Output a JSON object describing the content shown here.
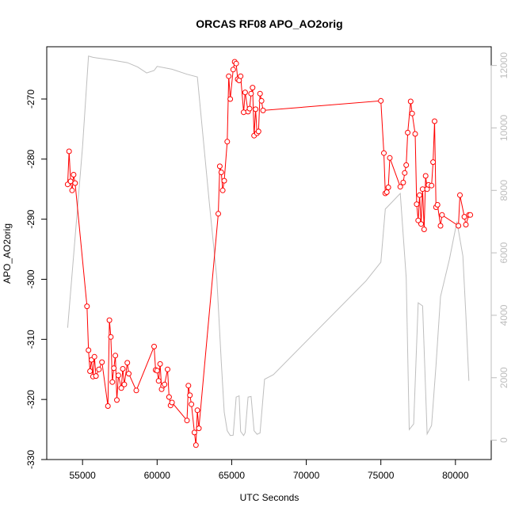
{
  "chart_data": {
    "type": "line",
    "title": "ORCAS RF08 APO_AO2orig",
    "xlabel": "UTC Seconds",
    "ylabel": "APO_AO2orig",
    "xlim": [
      52600,
      82400
    ],
    "ylim": [
      -330,
      -261.3
    ],
    "y2lim": [
      -620,
      12600
    ],
    "grid": false,
    "legend": "none",
    "x_ticks": [
      55000,
      60000,
      65000,
      70000,
      75000,
      80000
    ],
    "x_tick_labels": [
      "55000",
      "60000",
      "65000",
      "70000",
      "75000",
      "80000"
    ],
    "y_ticks": [
      -330,
      -320,
      -310,
      -300,
      -290,
      -280,
      -270
    ],
    "y_tick_labels": [
      "-330",
      "-320",
      "-310",
      "-300",
      "-290",
      "-280",
      "-270"
    ],
    "y2_ticks": [
      0,
      2000,
      4000,
      6000,
      8000,
      10000,
      12000
    ],
    "y2_tick_labels": [
      "0",
      "2000",
      "4000",
      "6000",
      "8000",
      "10000",
      "12000"
    ],
    "series": [
      {
        "color": "#ff0000",
        "axis": "left",
        "marker": "circle",
        "x": [
          54000,
          54100,
          54200,
          54300,
          54400,
          54500,
          55300,
          55400,
          55500,
          55600,
          55700,
          55800,
          55900,
          56100,
          56300,
          56700,
          56800,
          56900,
          57000,
          57100,
          57200,
          57300,
          57400,
          57600,
          57700,
          57800,
          58000,
          58100,
          58600,
          59800,
          59900,
          60000,
          60100,
          60200,
          60300,
          60400,
          60500,
          60700,
          60800,
          60900,
          61000,
          62000,
          62100,
          62200,
          62300,
          62500,
          62600,
          62700,
          62800,
          64100,
          64200,
          64300,
          64400,
          64500,
          64700,
          64800,
          64900,
          65100,
          65200,
          65300,
          65400,
          65500,
          65600,
          65800,
          65900,
          66100,
          66200,
          66300,
          66400,
          66500,
          66600,
          66700,
          66800,
          66900,
          67000,
          67100,
          75000,
          75200,
          75300,
          75400,
          75500,
          75600,
          76300,
          76500,
          76600,
          76700,
          76800,
          77000,
          77100,
          77300,
          77400,
          77500,
          77600,
          77700,
          77800,
          77900,
          78000,
          78100,
          78200,
          78400,
          78500,
          78600,
          78700,
          78800,
          79000,
          79100,
          80200,
          80300,
          80600,
          80700,
          80900,
          81000
        ],
        "values": [
          -284.2,
          -278.7,
          -283.7,
          -285.2,
          -282.6,
          -284.0,
          -304.5,
          -311.8,
          -315.3,
          -313.4,
          -316.2,
          -312.9,
          -316.1,
          -315.0,
          -313.8,
          -321.1,
          -306.8,
          -309.6,
          -317.1,
          -314.8,
          -312.7,
          -320.1,
          -316.0,
          -318.1,
          -314.9,
          -317.5,
          -313.9,
          -315.7,
          -318.5,
          -311.2,
          -315.1,
          -315.2,
          -316.9,
          -314.1,
          -318.3,
          -317.7,
          -317.5,
          -315.0,
          -319.6,
          -321.0,
          -320.5,
          -323.5,
          -317.7,
          -319.3,
          -320.8,
          -325.5,
          -327.6,
          -321.8,
          -324.8,
          -289.1,
          -281.2,
          -282.2,
          -285.2,
          -283.6,
          -277.1,
          -266.2,
          -270.0,
          -265.1,
          -263.8,
          -264.1,
          -266.7,
          -266.9,
          -266.2,
          -272.2,
          -268.9,
          -272.1,
          -271.6,
          -269.1,
          -268.1,
          -276.1,
          -271.7,
          -275.7,
          -275.4,
          -269.1,
          -270.3,
          -271.9,
          -270.3,
          -279.0,
          -285.7,
          -285.5,
          -284.7,
          -279.8,
          -284.6,
          -283.9,
          -282.3,
          -281.0,
          -275.6,
          -270.4,
          -272.4,
          -275.8,
          -287.5,
          -290.2,
          -286.0,
          -290.8,
          -285.0,
          -291.7,
          -282.8,
          -285.0,
          -284.3,
          -284.4,
          -280.5,
          -273.7,
          -288.0,
          -287.6,
          -291.1,
          -289.3,
          -291.1,
          -286.0,
          -289.6,
          -290.9,
          -289.3,
          -289.3
        ]
      },
      {
        "color": "#bebebe",
        "axis": "right",
        "marker": "none",
        "x": [
          54000,
          55000,
          55400,
          55700,
          56000,
          57000,
          58000,
          58700,
          59300,
          59800,
          60000,
          61000,
          62000,
          62700,
          63500,
          64000,
          64300,
          64500,
          64700,
          64900,
          65100,
          65300,
          65500,
          65600,
          65800,
          65900,
          66100,
          66300,
          66500,
          66700,
          66900,
          67200,
          67800,
          74000,
          75000,
          75300,
          75700,
          76300,
          76700,
          76900,
          77200,
          77500,
          77800,
          78100,
          78400,
          78700,
          79000,
          79600,
          80100,
          80500,
          80700,
          80900
        ],
        "values": [
          3600,
          9400,
          12300,
          12260,
          12240,
          12170,
          12090,
          11950,
          11760,
          11840,
          11970,
          11880,
          11720,
          11630,
          7600,
          5200,
          2500,
          900,
          300,
          150,
          160,
          1380,
          1420,
          280,
          150,
          240,
          1380,
          1400,
          300,
          190,
          230,
          1950,
          2100,
          5100,
          5700,
          7400,
          7600,
          7900,
          5200,
          340,
          520,
          4400,
          4300,
          200,
          470,
          2400,
          4600,
          5800,
          7000,
          5900,
          4000,
          1900
        ]
      }
    ]
  }
}
